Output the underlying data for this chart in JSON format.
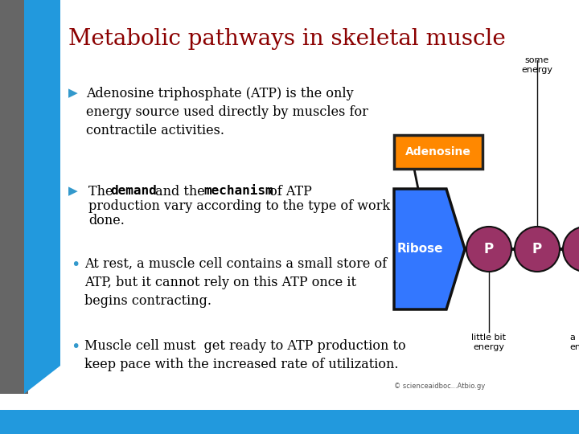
{
  "title": "Metabolic pathways in skeletal muscle",
  "title_color": "#8B0000",
  "title_fontsize": 20,
  "bg_color": "#FFFFFF",
  "bullet1_text": "Adenosine triphosphate (ATP) is the only\nenergy source used directly by muscles for\ncontractile activities.",
  "bullet2_line1_normal1": "The ",
  "bullet2_line1_bold1": "demand",
  "bullet2_line1_normal2": " and the  ",
  "bullet2_line1_bold2": "mechanism",
  "bullet2_line1_normal3": " of ATP",
  "bullet2_line2": "production vary according to the type of work",
  "bullet2_line3": "done.",
  "bullet3_text": "At rest, a muscle cell contains a small store of\nATP, but it cannot rely on this ATP once it\nbegins contracting.",
  "bullet4_text": "Muscle cell must  get ready to ATP production to\nkeep pace with the increased rate of utilization.",
  "text_fontsize": 11.5,
  "arrow_color": "#3399CC",
  "bullet_color": "#3399CC",
  "grey_bar_color": "#666666",
  "blue_bar_color": "#2299DD",
  "diag_adenosine_color": "#FF8800",
  "diag_adenosine_border": "#222222",
  "diag_ribose_color": "#3377FF",
  "diag_ribose_border": "#111111",
  "diag_p_color": "#993366",
  "diag_line_color": "#111111"
}
